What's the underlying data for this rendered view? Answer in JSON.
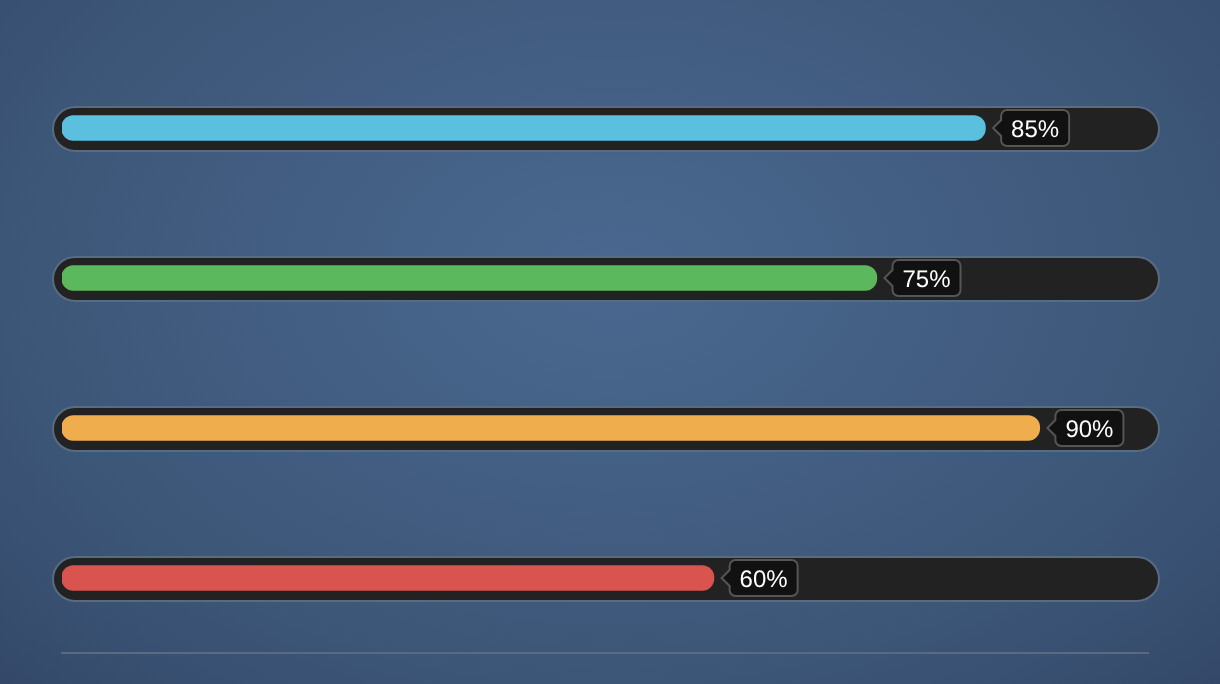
{
  "chart_data": {
    "type": "bar",
    "orientation": "horizontal",
    "categories": [
      null,
      null,
      null,
      null
    ],
    "values": [
      85,
      75,
      90,
      60
    ],
    "colors": [
      "#5bc0de",
      "#5cb85c",
      "#f0ad4e",
      "#d9534f"
    ],
    "value_labels": [
      "85%",
      "75%",
      "90%",
      "60%"
    ],
    "xlim": [
      0,
      100
    ],
    "tick_labels": false,
    "legend": false
  }
}
